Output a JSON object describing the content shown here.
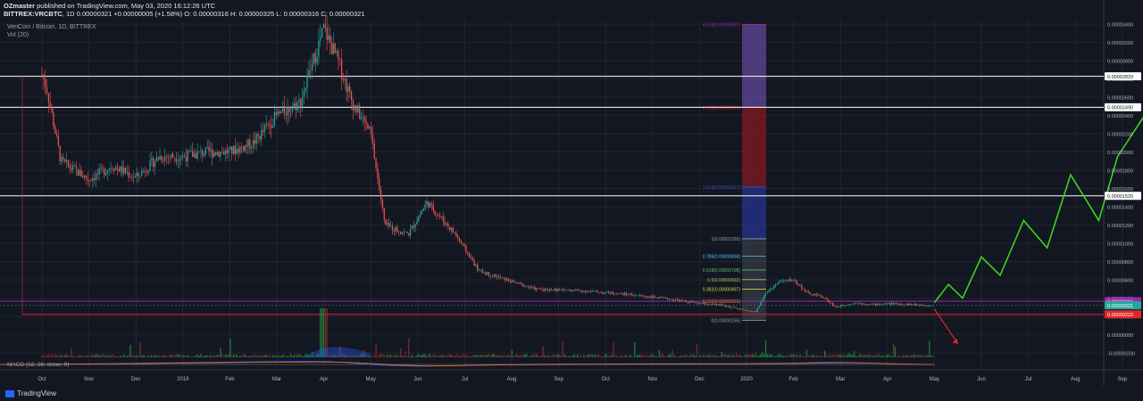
{
  "header": {
    "publisher": "OZmaster",
    "published_text": "published on TradingView.com, May 03, 2020 16:12:26 UTC",
    "ticker": "BITTREX:VRCBTC",
    "interval": "1D",
    "last": "0.00000321",
    "change": "+0.00000005 (+1.58%)",
    "ohlc": "O: 0.00000316  H: 0.00000325  L: 0.00000316  C: 0.00000321"
  },
  "legend": {
    "symbol_line": "VeriCoin / Bitcoin, 1D, BITTREX",
    "volume_line": "Vol (20)",
    "macd_line": "MACD (12, 26, close, 9)"
  },
  "brand": {
    "name": "TradingView"
  },
  "colors": {
    "background": "#131722",
    "grid": "#2a2e39",
    "up_candle": "#26a69a",
    "down_candle": "#ef5350",
    "projection_up": "#3cd31c",
    "projection_down": "#e0262b",
    "purple_line": "#9c27b0",
    "red_line": "#e0262b"
  },
  "chart_data": {
    "type": "candlestick",
    "title": "VeriCoin / Bitcoin, 1D, BITTREX",
    "xlabel": "",
    "ylabel": "",
    "grid": true,
    "x_ticks": [
      "Oct",
      "Nov",
      "Dec",
      "2019",
      "Feb",
      "Mar",
      "Apr",
      "May",
      "Jun",
      "Jul",
      "Aug",
      "Sep",
      "Oct",
      "Nov",
      "Dec",
      "2020",
      "Feb",
      "Mar",
      "Apr",
      "May",
      "Jun",
      "Jul",
      "Aug",
      "Sep"
    ],
    "y_ticks": [
      "0.00003400",
      "0.00003200",
      "0.00003000",
      "0.00002800",
      "0.00002600",
      "0.00002400",
      "0.00002200",
      "0.00002000",
      "0.00001800",
      "0.00001600",
      "0.00001400",
      "0.00001200",
      "0.00001000",
      "0.00000800",
      "0.00000600",
      "0.00000400",
      "0.00000200",
      "0.00000000",
      "-0.00000200"
    ],
    "ylim": [
      -2e-06,
      3.45e-05
    ],
    "price_path": {
      "month_index": [
        0,
        0.1,
        0.4,
        1.0,
        1.5,
        2.0,
        2.5,
        3.0,
        3.5,
        4.0,
        4.5,
        5.0,
        5.5,
        6.0,
        6.3,
        6.6,
        7.0,
        7.3,
        7.8,
        8.2,
        8.8,
        9.3,
        10.0,
        10.5,
        11.5,
        12.5,
        13.5,
        14.0,
        14.5,
        15.0,
        15.2,
        15.4,
        15.7,
        16.0,
        16.3,
        16.6,
        16.9,
        17.3,
        17.7,
        18.0,
        18.5,
        19.0
      ],
      "price_btc": [
        2.85e-05,
        2.7e-05,
        1.9e-05,
        1.7e-05,
        1.85e-05,
        1.72e-05,
        1.95e-05,
        1.95e-05,
        2e-05,
        2e-05,
        2.1e-05,
        2.4e-05,
        2.55e-05,
        3.35e-05,
        3e-05,
        2.55e-05,
        2.2e-05,
        1.2e-05,
        1.1e-05,
        1.45e-05,
        1.1e-05,
        7e-06,
        5.8e-06,
        5e-06,
        4.8e-06,
        4.4e-06,
        3.8e-06,
        3.4e-06,
        3.2e-06,
        2.6e-06,
        2.5e-06,
        4.5e-06,
        5.8e-06,
        6e-06,
        4.5e-06,
        4.2e-06,
        3e-06,
        3.5e-06,
        3.3e-06,
        3.4e-06,
        3.3e-06,
        3.2e-06
      ]
    },
    "horizontal_levels": [
      {
        "price": "0.00002829",
        "color": "#ffffff"
      },
      {
        "price": "0.00002490",
        "color": "#ffffff"
      },
      {
        "price": "0.00001520",
        "color": "#ffffff"
      }
    ],
    "price_tags": [
      {
        "price": "0.00000366",
        "color": "#9c27b0"
      },
      {
        "price": "0.00000321",
        "color": "#26a69a"
      },
      {
        "price": "0.00000222",
        "color": "#e0262b"
      }
    ],
    "fib_levels": [
      {
        "ratio": "4.618",
        "price": "0.00003397"
      },
      {
        "ratio": "2.618",
        "price": "0.00002491"
      },
      {
        "ratio": "1.618",
        "price": "0.00001617"
      },
      {
        "ratio": "1",
        "price": "0.00001050"
      },
      {
        "ratio": "0.786",
        "price": "0.00000858"
      },
      {
        "ratio": "0.618",
        "price": "0.00000708"
      },
      {
        "ratio": "0.5",
        "price": "0.00000602"
      },
      {
        "ratio": "0.382",
        "price": "0.00000497"
      },
      {
        "ratio": "0.236",
        "price": "0.00000366"
      },
      {
        "ratio": "0",
        "price": "0.00000155"
      }
    ],
    "projection_up": {
      "month_index": [
        19.0,
        19.3,
        19.6,
        20.0,
        20.4,
        20.9,
        21.4,
        21.9,
        22.5,
        22.9,
        23.6
      ],
      "price_btc": [
        3.5e-06,
        5.5e-06,
        4e-06,
        8.5e-06,
        6.5e-06,
        1.25e-05,
        9.5e-06,
        1.75e-05,
        1.25e-05,
        1.95e-05,
        2.5e-05
      ]
    },
    "projection_down": {
      "month_index": [
        19.0,
        19.5
      ],
      "price_btc": [
        2.8e-06,
        -1e-06
      ]
    },
    "volume_note": "Vol (20)",
    "macd": {
      "fast": 12,
      "slow": 26,
      "source": "close",
      "signal": 9
    }
  }
}
